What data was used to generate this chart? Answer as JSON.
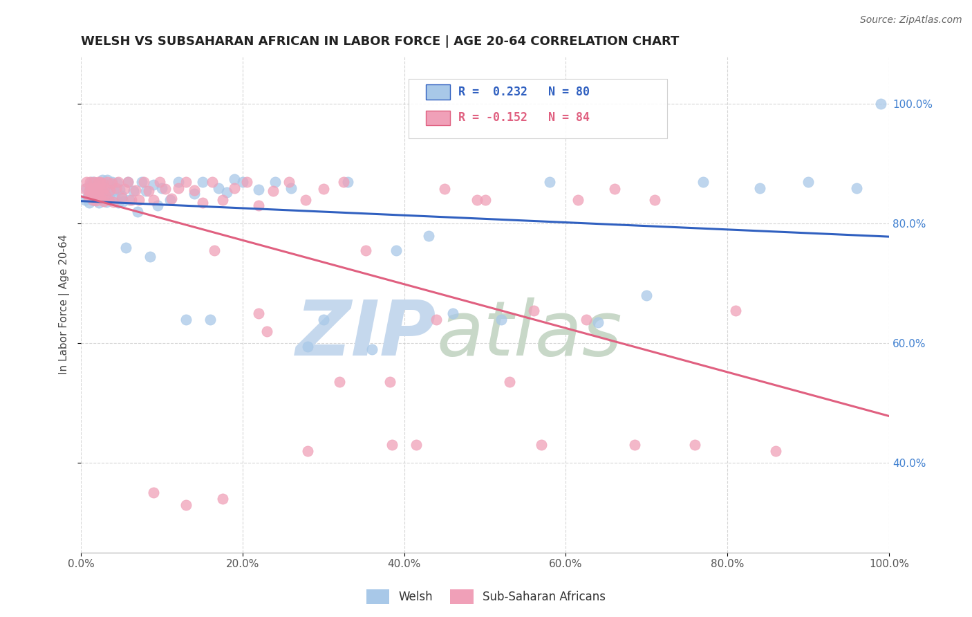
{
  "title": "WELSH VS SUBSAHARAN AFRICAN IN LABOR FORCE | AGE 20-64 CORRELATION CHART",
  "source_text": "Source: ZipAtlas.com",
  "ylabel": "In Labor Force | Age 20-64",
  "legend_entries": [
    {
      "label": "Welsh",
      "R": 0.232,
      "N": 80
    },
    {
      "label": "Sub-Saharan Africans",
      "R": -0.152,
      "N": 84
    }
  ],
  "blue_color": "#a8c8e8",
  "pink_color": "#f0a0b8",
  "blue_line_color": "#3060c0",
  "pink_line_color": "#e06080",
  "watermark_zip_color": "#c5d8ed",
  "watermark_atlas_color": "#c8d8c8",
  "background_color": "#ffffff",
  "grid_color": "#cccccc",
  "right_tick_color": "#4080d0",
  "xlim": [
    0.0,
    1.0
  ],
  "ylim": [
    0.25,
    1.08
  ],
  "xticks": [
    0.0,
    0.2,
    0.4,
    0.6,
    0.8,
    1.0
  ],
  "yticks_right": [
    0.4,
    0.6,
    0.8,
    1.0
  ],
  "ytick_labels_right": [
    "40.0%",
    "60.0%",
    "80.0%",
    "100.0%"
  ],
  "xtick_labels": [
    "0.0%",
    "20.0%",
    "40.0%",
    "60.0%",
    "80.0%",
    "100.0%"
  ],
  "blue_x": [
    0.005,
    0.007,
    0.008,
    0.01,
    0.011,
    0.012,
    0.013,
    0.013,
    0.014,
    0.015,
    0.015,
    0.016,
    0.017,
    0.018,
    0.018,
    0.019,
    0.02,
    0.021,
    0.022,
    0.022,
    0.023,
    0.024,
    0.025,
    0.026,
    0.027,
    0.028,
    0.03,
    0.031,
    0.032,
    0.033,
    0.035,
    0.036,
    0.038,
    0.04,
    0.042,
    0.044,
    0.046,
    0.048,
    0.05,
    0.052,
    0.055,
    0.058,
    0.06,
    0.065,
    0.07,
    0.075,
    0.08,
    0.085,
    0.09,
    0.095,
    0.1,
    0.11,
    0.12,
    0.13,
    0.14,
    0.15,
    0.16,
    0.17,
    0.18,
    0.19,
    0.2,
    0.22,
    0.24,
    0.26,
    0.28,
    0.3,
    0.33,
    0.36,
    0.39,
    0.43,
    0.46,
    0.52,
    0.58,
    0.64,
    0.7,
    0.77,
    0.84,
    0.9,
    0.96,
    0.99
  ],
  "blue_y": [
    0.84,
    0.86,
    0.845,
    0.835,
    0.855,
    0.865,
    0.85,
    0.87,
    0.84,
    0.855,
    0.87,
    0.84,
    0.862,
    0.848,
    0.866,
    0.853,
    0.858,
    0.843,
    0.869,
    0.835,
    0.857,
    0.848,
    0.862,
    0.873,
    0.84,
    0.852,
    0.865,
    0.836,
    0.873,
    0.848,
    0.86,
    0.842,
    0.87,
    0.856,
    0.843,
    0.869,
    0.835,
    0.857,
    0.847,
    0.838,
    0.76,
    0.87,
    0.84,
    0.855,
    0.82,
    0.87,
    0.855,
    0.745,
    0.865,
    0.83,
    0.86,
    0.84,
    0.87,
    0.64,
    0.85,
    0.87,
    0.64,
    0.86,
    0.853,
    0.875,
    0.87,
    0.857,
    0.87,
    0.86,
    0.595,
    0.64,
    0.87,
    0.59,
    0.755,
    0.78,
    0.65,
    0.64,
    0.87,
    0.635,
    0.68,
    0.87,
    0.86,
    0.87,
    0.86,
    1.0
  ],
  "pink_x": [
    0.005,
    0.007,
    0.009,
    0.01,
    0.011,
    0.012,
    0.013,
    0.014,
    0.015,
    0.016,
    0.017,
    0.018,
    0.019,
    0.02,
    0.021,
    0.022,
    0.023,
    0.024,
    0.025,
    0.026,
    0.027,
    0.028,
    0.029,
    0.03,
    0.032,
    0.034,
    0.036,
    0.038,
    0.04,
    0.043,
    0.046,
    0.05,
    0.054,
    0.058,
    0.062,
    0.067,
    0.072,
    0.078,
    0.084,
    0.09,
    0.097,
    0.104,
    0.112,
    0.12,
    0.13,
    0.14,
    0.15,
    0.162,
    0.175,
    0.19,
    0.205,
    0.22,
    0.238,
    0.257,
    0.278,
    0.3,
    0.325,
    0.352,
    0.382,
    0.415,
    0.45,
    0.49,
    0.53,
    0.57,
    0.615,
    0.66,
    0.71,
    0.76,
    0.81,
    0.86,
    0.165,
    0.22,
    0.28,
    0.32,
    0.385,
    0.44,
    0.5,
    0.56,
    0.625,
    0.685,
    0.09,
    0.13,
    0.175,
    0.23
  ],
  "pink_y": [
    0.858,
    0.87,
    0.845,
    0.855,
    0.87,
    0.86,
    0.85,
    0.84,
    0.858,
    0.87,
    0.848,
    0.861,
    0.839,
    0.855,
    0.87,
    0.843,
    0.858,
    0.87,
    0.842,
    0.855,
    0.868,
    0.838,
    0.86,
    0.848,
    0.87,
    0.84,
    0.856,
    0.868,
    0.836,
    0.86,
    0.87,
    0.843,
    0.858,
    0.87,
    0.84,
    0.856,
    0.84,
    0.87,
    0.855,
    0.84,
    0.87,
    0.858,
    0.842,
    0.86,
    0.87,
    0.856,
    0.835,
    0.87,
    0.84,
    0.86,
    0.87,
    0.83,
    0.855,
    0.87,
    0.84,
    0.858,
    0.87,
    0.755,
    0.536,
    0.43,
    0.858,
    0.84,
    0.536,
    0.43,
    0.84,
    0.858,
    0.84,
    0.43,
    0.655,
    0.42,
    0.755,
    0.65,
    0.42,
    0.536,
    0.43,
    0.64,
    0.84,
    0.655,
    0.64,
    0.43,
    0.35,
    0.33,
    0.34,
    0.62
  ]
}
